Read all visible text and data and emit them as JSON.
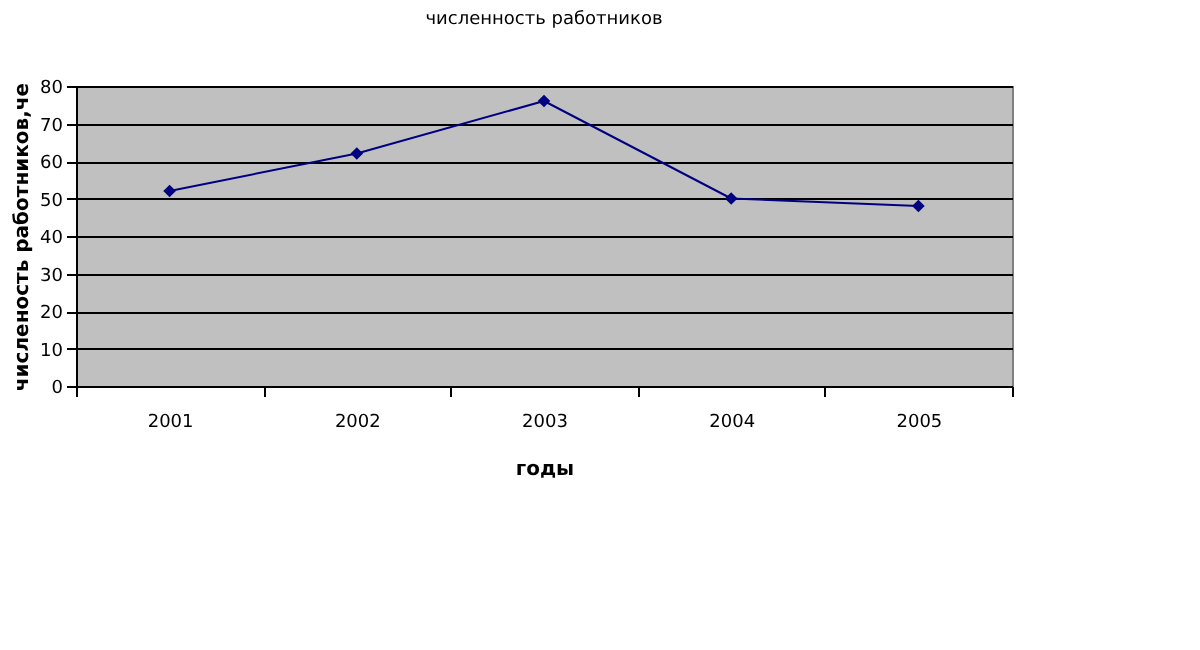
{
  "chart_data": {
    "type": "line",
    "title": "численность работников",
    "xlabel": "годы",
    "ylabel": "численость работников,че",
    "categories": [
      "2001",
      "2002",
      "2003",
      "2004",
      "2005"
    ],
    "series": [
      {
        "color": "#000080",
        "values": [
          52,
          62,
          76,
          50,
          48
        ]
      }
    ],
    "ylim": [
      0,
      80
    ],
    "yticks": [
      0,
      10,
      20,
      30,
      40,
      50,
      60,
      70,
      80
    ],
    "grid": "y",
    "marker": "diamond",
    "line_style": "solid"
  }
}
